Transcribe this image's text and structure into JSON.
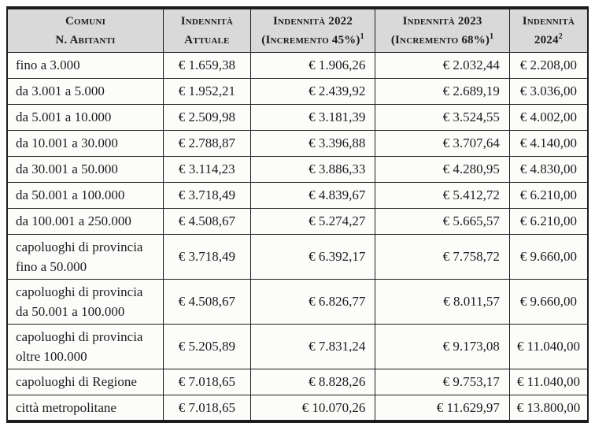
{
  "theme": {
    "header_bg": "#d9d9d9",
    "cell_bg": "#fcfcfb",
    "border_color": "#1c1c1c",
    "text_color": "#1b1b1b"
  },
  "table": {
    "header": {
      "comuni": {
        "line1": "Comuni",
        "line2": "N. Abitanti",
        "sup": ""
      },
      "attuale": {
        "line1": "Indennità",
        "line2": "Attuale",
        "sup": ""
      },
      "ind2022": {
        "line1": "Indennità 2022",
        "line2": "(Incremento 45%)",
        "sup": "1"
      },
      "ind2023": {
        "line1": "Indennità 2023",
        "line2": "(Incremento 68%)",
        "sup": "1"
      },
      "ind2024": {
        "line1": "Indennità",
        "line2": "2024",
        "sup": "2"
      }
    },
    "rows": [
      {
        "comuni": "fino a 3.000",
        "comuni2": "",
        "attuale": "€ 1.659,38",
        "ind2022": "€ 1.906,26",
        "ind2023": "€ 2.032,44",
        "ind2024": "€ 2.208,00"
      },
      {
        "comuni": "da 3.001 a 5.000",
        "comuni2": "",
        "attuale": "€ 1.952,21",
        "ind2022": "€ 2.439,92",
        "ind2023": "€ 2.689,19",
        "ind2024": "€ 3.036,00"
      },
      {
        "comuni": "da 5.001 a 10.000",
        "comuni2": "",
        "attuale": "€ 2.509,98",
        "ind2022": "€ 3.181,39",
        "ind2023": "€ 3.524,55",
        "ind2024": "€ 4.002,00"
      },
      {
        "comuni": "da 10.001 a 30.000",
        "comuni2": "",
        "attuale": "€ 2.788,87",
        "ind2022": "€ 3.396,88",
        "ind2023": "€ 3.707,64",
        "ind2024": "€ 4.140,00"
      },
      {
        "comuni": "da 30.001 a 50.000",
        "comuni2": "",
        "attuale": "€ 3.114,23",
        "ind2022": "€ 3.886,33",
        "ind2023": "€ 4.280,95",
        "ind2024": "€ 4.830,00"
      },
      {
        "comuni": "da 50.001 a 100.000",
        "comuni2": "",
        "attuale": "€ 3.718,49",
        "ind2022": "€ 4.839,67",
        "ind2023": "€ 5.412,72",
        "ind2024": "€ 6.210,00"
      },
      {
        "comuni": "da 100.001 a 250.000",
        "comuni2": "",
        "attuale": "€ 4.508,67",
        "ind2022": "€ 5.274,27",
        "ind2023": "€ 5.665,57",
        "ind2024": "€ 6.210,00"
      },
      {
        "comuni": "capoluoghi di provincia",
        "comuni2": "fino a 50.000",
        "attuale": "€ 3.718,49",
        "ind2022": "€ 6.392,17",
        "ind2023": "€ 7.758,72",
        "ind2024": "€ 9.660,00"
      },
      {
        "comuni": "capoluoghi di provincia",
        "comuni2": "da 50.001 a 100.000",
        "attuale": "€ 4.508,67",
        "ind2022": "€ 6.826,77",
        "ind2023": "€ 8.011,57",
        "ind2024": "€ 9.660,00"
      },
      {
        "comuni": "capoluoghi di provincia",
        "comuni2": "oltre 100.000",
        "attuale": "€ 5.205,89",
        "ind2022": "€ 7.831,24",
        "ind2023": "€ 9.173,08",
        "ind2024": "€ 11.040,00"
      },
      {
        "comuni": "capoluoghi di Regione",
        "comuni2": "",
        "attuale": "€ 7.018,65",
        "ind2022": "€ 8.828,26",
        "ind2023": "€ 9.753,17",
        "ind2024": "€ 11.040,00"
      },
      {
        "comuni": "città metropolitane",
        "comuni2": "",
        "attuale": "€ 7.018,65",
        "ind2022": "€ 10.070,26",
        "ind2023": "€ 11.629,97",
        "ind2024": "€ 13.800,00"
      }
    ]
  }
}
